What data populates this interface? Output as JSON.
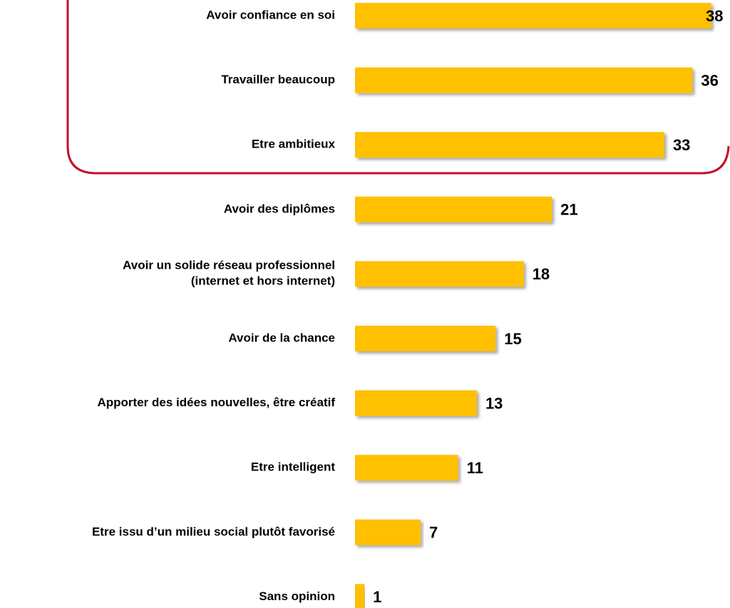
{
  "chart_data": {
    "type": "bar",
    "orientation": "horizontal",
    "categories": [
      "Avoir confiance en soi",
      "Travailler beaucoup",
      "Etre ambitieux",
      "Avoir des diplômes",
      "Avoir un solide réseau professionnel\n(internet et hors internet)",
      "Avoir de la chance",
      "Apporter des idées nouvelles, être créatif",
      "Etre intelligent",
      "Etre issu d’un milieu social plutôt favorisé",
      "Sans opinion"
    ],
    "values": [
      38,
      36,
      33,
      21,
      18,
      15,
      13,
      11,
      7,
      1
    ],
    "color": "#ffc000"
  }
}
